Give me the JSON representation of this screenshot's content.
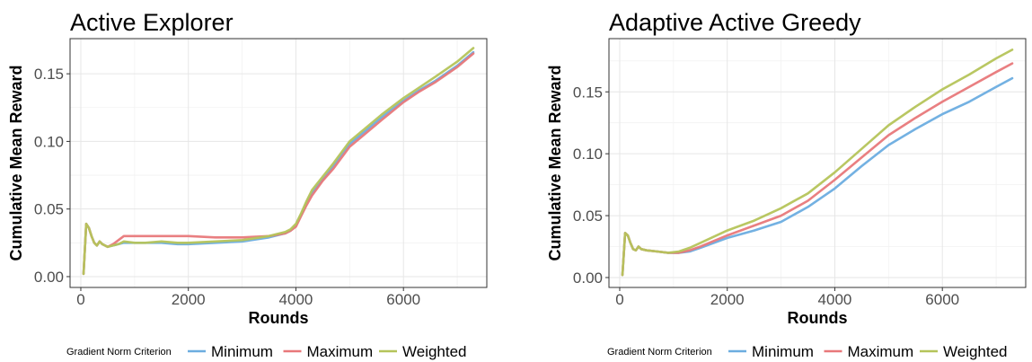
{
  "legend": {
    "title": "Gradient Norm Criterion"
  },
  "series_colors": {
    "Minimum": "#6cade0",
    "Maximum": "#e8787a",
    "Weighted": "#b5c45a"
  },
  "chart_data": [
    {
      "type": "line",
      "title": "Active Explorer",
      "xlabel": "Rounds",
      "ylabel": "Cumulative Mean Reward",
      "xlim": [
        -200,
        7550
      ],
      "ylim": [
        -0.008,
        0.176
      ],
      "xticks": [
        0,
        2000,
        4000,
        6000
      ],
      "xtick_labels": [
        "0",
        "2000",
        "4000",
        "6000"
      ],
      "yticks": [
        0,
        0.05,
        0.1,
        0.15
      ],
      "ytick_labels": [
        "0.00",
        "0.05",
        "0.10",
        "0.15"
      ],
      "grid": true,
      "legend_position": "bottom",
      "series": [
        {
          "name": "Minimum",
          "x": [
            50,
            100,
            150,
            200,
            250,
            300,
            350,
            400,
            500,
            600,
            700,
            800,
            1000,
            1200,
            1500,
            1800,
            2000,
            2500,
            3000,
            3500,
            3800,
            3900,
            4000,
            4100,
            4200,
            4300,
            4500,
            4700,
            5000,
            5300,
            5600,
            6000,
            6300,
            6600,
            7000,
            7300
          ],
          "y": [
            0.002,
            0.039,
            0.036,
            0.03,
            0.025,
            0.023,
            0.026,
            0.024,
            0.022,
            0.023,
            0.024,
            0.025,
            0.025,
            0.025,
            0.025,
            0.024,
            0.024,
            0.025,
            0.026,
            0.029,
            0.032,
            0.034,
            0.038,
            0.046,
            0.055,
            0.062,
            0.072,
            0.082,
            0.098,
            0.108,
            0.118,
            0.13,
            0.138,
            0.145,
            0.156,
            0.166
          ]
        },
        {
          "name": "Maximum",
          "x": [
            50,
            100,
            150,
            200,
            250,
            300,
            350,
            400,
            500,
            600,
            700,
            800,
            1000,
            1200,
            1500,
            1800,
            2000,
            2500,
            3000,
            3500,
            3800,
            3900,
            4000,
            4100,
            4200,
            4300,
            4500,
            4700,
            5000,
            5300,
            5600,
            6000,
            6300,
            6600,
            7000,
            7300
          ],
          "y": [
            0.002,
            0.039,
            0.036,
            0.03,
            0.025,
            0.023,
            0.026,
            0.024,
            0.022,
            0.024,
            0.027,
            0.03,
            0.03,
            0.03,
            0.03,
            0.03,
            0.03,
            0.029,
            0.029,
            0.03,
            0.032,
            0.034,
            0.037,
            0.045,
            0.053,
            0.06,
            0.071,
            0.08,
            0.096,
            0.106,
            0.116,
            0.129,
            0.137,
            0.144,
            0.155,
            0.165
          ]
        },
        {
          "name": "Weighted",
          "x": [
            50,
            100,
            150,
            200,
            250,
            300,
            350,
            400,
            500,
            600,
            700,
            800,
            1000,
            1200,
            1500,
            1800,
            2000,
            2500,
            3000,
            3500,
            3800,
            3900,
            4000,
            4100,
            4200,
            4300,
            4500,
            4700,
            5000,
            5300,
            5600,
            6000,
            6300,
            6600,
            7000,
            7300
          ],
          "y": [
            0.002,
            0.039,
            0.036,
            0.03,
            0.025,
            0.023,
            0.026,
            0.024,
            0.022,
            0.023,
            0.024,
            0.026,
            0.025,
            0.025,
            0.026,
            0.025,
            0.025,
            0.026,
            0.027,
            0.03,
            0.033,
            0.035,
            0.039,
            0.047,
            0.056,
            0.064,
            0.074,
            0.084,
            0.1,
            0.11,
            0.12,
            0.132,
            0.14,
            0.148,
            0.159,
            0.169
          ]
        }
      ]
    },
    {
      "type": "line",
      "title": "Adaptive Active Greedy",
      "xlabel": "Rounds",
      "ylabel": "Cumulative Mean Reward",
      "xlim": [
        -200,
        7550
      ],
      "ylim": [
        -0.008,
        0.193
      ],
      "xticks": [
        0,
        2000,
        4000,
        6000
      ],
      "xtick_labels": [
        "0",
        "2000",
        "4000",
        "6000"
      ],
      "yticks": [
        0,
        0.05,
        0.1,
        0.15
      ],
      "ytick_labels": [
        "0.00",
        "0.05",
        "0.10",
        "0.15"
      ],
      "grid": true,
      "legend_position": "bottom",
      "series": [
        {
          "name": "Minimum",
          "x": [
            50,
            100,
            150,
            200,
            250,
            300,
            350,
            400,
            500,
            700,
            900,
            1100,
            1300,
            1500,
            2000,
            2500,
            3000,
            3500,
            4000,
            4500,
            5000,
            5500,
            6000,
            6500,
            7000,
            7300
          ],
          "y": [
            0.002,
            0.036,
            0.034,
            0.028,
            0.023,
            0.022,
            0.025,
            0.023,
            0.022,
            0.021,
            0.02,
            0.02,
            0.021,
            0.024,
            0.032,
            0.038,
            0.045,
            0.057,
            0.072,
            0.09,
            0.107,
            0.12,
            0.132,
            0.142,
            0.154,
            0.161
          ]
        },
        {
          "name": "Maximum",
          "x": [
            50,
            100,
            150,
            200,
            250,
            300,
            350,
            400,
            500,
            700,
            900,
            1100,
            1300,
            1500,
            2000,
            2500,
            3000,
            3500,
            4000,
            4500,
            5000,
            5500,
            6000,
            6500,
            7000,
            7300
          ],
          "y": [
            0.002,
            0.036,
            0.034,
            0.028,
            0.023,
            0.022,
            0.025,
            0.023,
            0.022,
            0.021,
            0.02,
            0.02,
            0.022,
            0.025,
            0.034,
            0.042,
            0.05,
            0.062,
            0.079,
            0.097,
            0.115,
            0.129,
            0.142,
            0.154,
            0.166,
            0.173
          ]
        },
        {
          "name": "Weighted",
          "x": [
            50,
            100,
            150,
            200,
            250,
            300,
            350,
            400,
            500,
            700,
            900,
            1100,
            1300,
            1500,
            2000,
            2500,
            3000,
            3500,
            4000,
            4500,
            5000,
            5500,
            6000,
            6500,
            7000,
            7300
          ],
          "y": [
            0.002,
            0.036,
            0.034,
            0.028,
            0.023,
            0.022,
            0.025,
            0.023,
            0.022,
            0.021,
            0.02,
            0.021,
            0.024,
            0.028,
            0.038,
            0.046,
            0.056,
            0.068,
            0.085,
            0.104,
            0.123,
            0.138,
            0.152,
            0.164,
            0.177,
            0.184
          ]
        }
      ]
    }
  ]
}
